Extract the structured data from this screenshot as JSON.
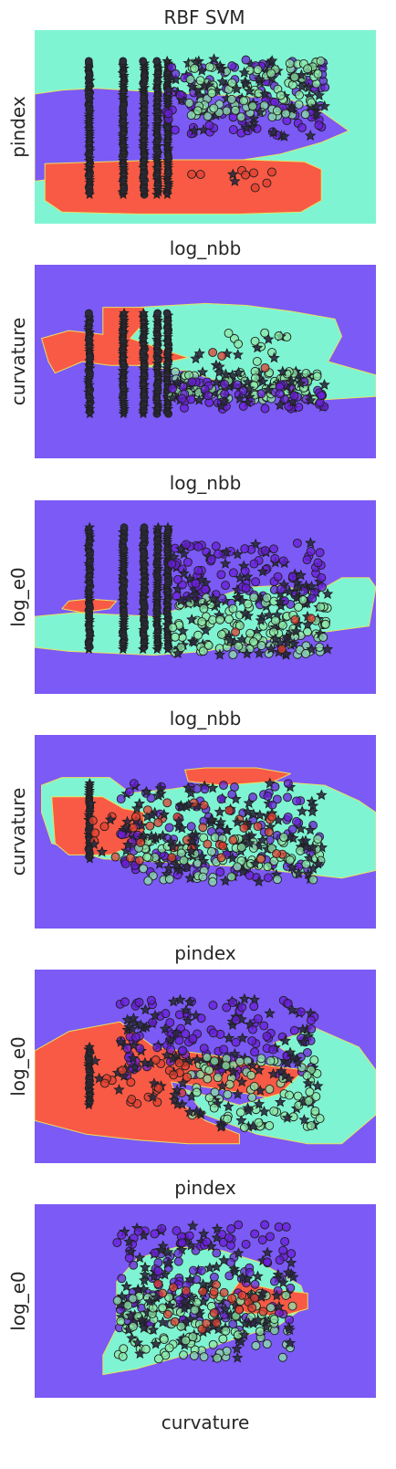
{
  "title": "RBF SVM",
  "colors": {
    "violet": "#7b5af5",
    "teal": "#7ff4d3",
    "red": "#f85a46",
    "class_purple": "#6a1fd8",
    "class_green": "#8ce8a8",
    "class_red": "#e04030",
    "edge": "#1e1e1e"
  },
  "chart_data": [
    {
      "type": "scatter",
      "xlabel": "log_nbb",
      "ylabel": "pindex",
      "grid": false,
      "xlim": [
        0,
        1
      ],
      "ylim": [
        0,
        1
      ],
      "background": "teal",
      "regions": [
        {
          "color": "violet",
          "points": [
            [
              0,
              0.67
            ],
            [
              0.08,
              0.69
            ],
            [
              0.18,
              0.7
            ],
            [
              0.35,
              0.68
            ],
            [
              0.6,
              0.66
            ],
            [
              0.75,
              0.64
            ],
            [
              0.84,
              0.58
            ],
            [
              0.92,
              0.48
            ],
            [
              0.84,
              0.42
            ],
            [
              0.72,
              0.36
            ],
            [
              0.5,
              0.3
            ],
            [
              0.3,
              0.28
            ],
            [
              0.1,
              0.24
            ],
            [
              0,
              0.22
            ]
          ]
        },
        {
          "color": "red",
          "points": [
            [
              0.03,
              0.31
            ],
            [
              0.2,
              0.32
            ],
            [
              0.4,
              0.33
            ],
            [
              0.62,
              0.33
            ],
            [
              0.79,
              0.32
            ],
            [
              0.84,
              0.28
            ],
            [
              0.84,
              0.12
            ],
            [
              0.78,
              0.06
            ],
            [
              0.6,
              0.05
            ],
            [
              0.3,
              0.05
            ],
            [
              0.08,
              0.06
            ],
            [
              0.03,
              0.12
            ]
          ]
        }
      ],
      "columns": [
        0.16,
        0.26,
        0.32,
        0.36,
        0.39
      ],
      "column_y": [
        0.15,
        0.84
      ],
      "clusters": [
        {
          "cls": "purple",
          "n": 140,
          "cx": [
            0.38,
            0.86
          ],
          "cy": [
            0.45,
            0.85
          ]
        },
        {
          "cls": "green",
          "n": 130,
          "cx": [
            0.45,
            0.84
          ],
          "cy": [
            0.55,
            0.85
          ]
        },
        {
          "cls": "red",
          "n": 10,
          "cx": [
            0.45,
            0.72
          ],
          "cy": [
            0.15,
            0.3
          ]
        }
      ]
    },
    {
      "type": "scatter",
      "xlabel": "log_nbb",
      "ylabel": "curvature",
      "grid": false,
      "xlim": [
        0,
        1
      ],
      "ylim": [
        0,
        1
      ],
      "background": "violet",
      "regions": [
        {
          "color": "teal",
          "points": [
            [
              0.2,
              0.77
            ],
            [
              0.3,
              0.78
            ],
            [
              0.4,
              0.79
            ],
            [
              0.5,
              0.8
            ],
            [
              0.62,
              0.79
            ],
            [
              0.75,
              0.76
            ],
            [
              0.88,
              0.72
            ],
            [
              0.9,
              0.63
            ],
            [
              0.86,
              0.5
            ],
            [
              1,
              0.43
            ],
            [
              1,
              0.32
            ],
            [
              0.82,
              0.3
            ],
            [
              0.6,
              0.36
            ],
            [
              0.45,
              0.45
            ],
            [
              0.3,
              0.48
            ],
            [
              0.22,
              0.55
            ]
          ]
        },
        {
          "color": "red",
          "points": [
            [
              0.02,
              0.62
            ],
            [
              0.1,
              0.66
            ],
            [
              0.2,
              0.64
            ],
            [
              0.2,
              0.78
            ],
            [
              0.32,
              0.78
            ],
            [
              0.32,
              0.7
            ],
            [
              0.28,
              0.62
            ],
            [
              0.38,
              0.56
            ],
            [
              0.45,
              0.52
            ],
            [
              0.34,
              0.48
            ],
            [
              0.22,
              0.48
            ],
            [
              0.14,
              0.5
            ],
            [
              0.06,
              0.44
            ],
            [
              0.04,
              0.5
            ]
          ]
        }
      ],
      "columns": [
        0.16,
        0.26,
        0.32,
        0.36,
        0.39
      ],
      "column_y": [
        0.23,
        0.75
      ],
      "clusters": [
        {
          "cls": "green",
          "n": 130,
          "cx": [
            0.4,
            0.85
          ],
          "cy": [
            0.3,
            0.45
          ]
        },
        {
          "cls": "purple",
          "n": 70,
          "cx": [
            0.4,
            0.85
          ],
          "cy": [
            0.25,
            0.4
          ]
        },
        {
          "cls": "green",
          "n": 15,
          "cx": [
            0.5,
            0.75
          ],
          "cy": [
            0.5,
            0.65
          ]
        },
        {
          "cls": "red",
          "n": 8,
          "cx": [
            0.45,
            0.7
          ],
          "cy": [
            0.45,
            0.55
          ]
        }
      ]
    },
    {
      "type": "scatter",
      "xlabel": "log_nbb",
      "ylabel": "log_e0",
      "grid": false,
      "xlim": [
        0,
        1
      ],
      "ylim": [
        0,
        1
      ],
      "background": "violet",
      "regions": [
        {
          "color": "teal",
          "points": [
            [
              0,
              0.4
            ],
            [
              0.12,
              0.42
            ],
            [
              0.35,
              0.4
            ],
            [
              0.5,
              0.48
            ],
            [
              0.62,
              0.55
            ],
            [
              0.72,
              0.56
            ],
            [
              0.82,
              0.52
            ],
            [
              0.9,
              0.6
            ],
            [
              0.98,
              0.6
            ],
            [
              1,
              0.55
            ],
            [
              0.98,
              0.35
            ],
            [
              0.85,
              0.32
            ],
            [
              0.68,
              0.28
            ],
            [
              0.5,
              0.22
            ],
            [
              0.35,
              0.2
            ],
            [
              0.1,
              0.22
            ],
            [
              0,
              0.24
            ]
          ]
        },
        {
          "color": "red",
          "points": [
            [
              0.08,
              0.44
            ],
            [
              0.1,
              0.48
            ],
            [
              0.16,
              0.49
            ],
            [
              0.24,
              0.48
            ],
            [
              0.22,
              0.44
            ],
            [
              0.14,
              0.42
            ]
          ]
        }
      ],
      "columns": [
        0.16,
        0.26,
        0.32,
        0.36,
        0.39
      ],
      "column_y": [
        0.23,
        0.86
      ],
      "clusters": [
        {
          "cls": "purple",
          "n": 140,
          "cx": [
            0.4,
            0.86
          ],
          "cy": [
            0.45,
            0.78
          ]
        },
        {
          "cls": "green",
          "n": 170,
          "cx": [
            0.4,
            0.86
          ],
          "cy": [
            0.2,
            0.5
          ]
        },
        {
          "cls": "red",
          "n": 6,
          "cx": [
            0.55,
            0.85
          ],
          "cy": [
            0.2,
            0.4
          ]
        }
      ]
    },
    {
      "type": "scatter",
      "xlabel": "pindex",
      "ylabel": "curvature",
      "grid": false,
      "xlim": [
        0,
        1
      ],
      "ylim": [
        0,
        1
      ],
      "background": "violet",
      "regions": [
        {
          "color": "teal",
          "points": [
            [
              0.02,
              0.74
            ],
            [
              0.08,
              0.78
            ],
            [
              0.22,
              0.78
            ],
            [
              0.28,
              0.7
            ],
            [
              0.4,
              0.72
            ],
            [
              0.55,
              0.76
            ],
            [
              0.7,
              0.76
            ],
            [
              0.85,
              0.74
            ],
            [
              0.95,
              0.66
            ],
            [
              1,
              0.6
            ],
            [
              1,
              0.3
            ],
            [
              0.9,
              0.26
            ],
            [
              0.8,
              0.28
            ],
            [
              0.6,
              0.32
            ],
            [
              0.4,
              0.34
            ],
            [
              0.2,
              0.36
            ],
            [
              0.05,
              0.44
            ],
            [
              0.02,
              0.6
            ]
          ]
        },
        {
          "color": "red",
          "points": [
            [
              0.05,
              0.68
            ],
            [
              0.2,
              0.68
            ],
            [
              0.26,
              0.62
            ],
            [
              0.32,
              0.6
            ],
            [
              0.32,
              0.45
            ],
            [
              0.22,
              0.38
            ],
            [
              0.1,
              0.38
            ],
            [
              0.06,
              0.44
            ]
          ]
        },
        {
          "color": "red",
          "points": [
            [
              0.44,
              0.82
            ],
            [
              0.5,
              0.83
            ],
            [
              0.65,
              0.83
            ],
            [
              0.75,
              0.8
            ],
            [
              0.7,
              0.76
            ],
            [
              0.55,
              0.74
            ],
            [
              0.45,
              0.76
            ]
          ]
        }
      ],
      "columns": [
        0.16
      ],
      "column_y": [
        0.36,
        0.75
      ],
      "clusters": [
        {
          "cls": "purple",
          "n": 190,
          "cx": [
            0.25,
            0.85
          ],
          "cy": [
            0.26,
            0.75
          ]
        },
        {
          "cls": "green",
          "n": 110,
          "cx": [
            0.3,
            0.85
          ],
          "cy": [
            0.24,
            0.48
          ]
        },
        {
          "cls": "red",
          "n": 70,
          "cx": [
            0.15,
            0.75
          ],
          "cy": [
            0.35,
            0.65
          ]
        }
      ]
    },
    {
      "type": "scatter",
      "xlabel": "pindex",
      "ylabel": "log_e0",
      "grid": false,
      "xlim": [
        0,
        1
      ],
      "ylim": [
        0,
        1
      ],
      "background": "violet",
      "regions": [
        {
          "color": "red",
          "points": [
            [
              0,
              0.58
            ],
            [
              0.1,
              0.68
            ],
            [
              0.25,
              0.73
            ],
            [
              0.35,
              0.6
            ],
            [
              0.55,
              0.55
            ],
            [
              0.7,
              0.5
            ],
            [
              0.8,
              0.48
            ],
            [
              0.85,
              0.42
            ],
            [
              0.75,
              0.32
            ],
            [
              0.55,
              0.38
            ],
            [
              0.4,
              0.42
            ],
            [
              0.42,
              0.32
            ],
            [
              0.5,
              0.22
            ],
            [
              0.6,
              0.15
            ],
            [
              0.6,
              0.1
            ],
            [
              0.45,
              0.1
            ],
            [
              0.3,
              0.12
            ],
            [
              0.15,
              0.15
            ],
            [
              0,
              0.22
            ]
          ]
        },
        {
          "color": "teal",
          "points": [
            [
              0.44,
              0.38
            ],
            [
              0.6,
              0.3
            ],
            [
              0.72,
              0.36
            ],
            [
              0.8,
              0.5
            ],
            [
              0.7,
              0.62
            ],
            [
              0.82,
              0.7
            ],
            [
              0.95,
              0.6
            ],
            [
              1,
              0.48
            ],
            [
              1,
              0.25
            ],
            [
              0.9,
              0.1
            ],
            [
              0.8,
              0.1
            ],
            [
              0.65,
              0.15
            ],
            [
              0.5,
              0.25
            ]
          ]
        }
      ],
      "columns": [
        0.16
      ],
      "column_y": [
        0.3,
        0.6
      ],
      "clusters": [
        {
          "cls": "purple",
          "n": 180,
          "cx": [
            0.25,
            0.82
          ],
          "cy": [
            0.45,
            0.85
          ]
        },
        {
          "cls": "green",
          "n": 120,
          "cx": [
            0.45,
            0.84
          ],
          "cy": [
            0.18,
            0.55
          ]
        },
        {
          "cls": "red",
          "n": 40,
          "cx": [
            0.17,
            0.45
          ],
          "cy": [
            0.3,
            0.55
          ]
        }
      ]
    },
    {
      "type": "scatter",
      "xlabel": "curvature",
      "ylabel": "log_e0",
      "grid": false,
      "xlim": [
        0,
        1
      ],
      "ylim": [
        0,
        1
      ],
      "background": "violet",
      "regions": [
        {
          "color": "teal",
          "points": [
            [
              0.24,
              0.6
            ],
            [
              0.3,
              0.72
            ],
            [
              0.42,
              0.78
            ],
            [
              0.55,
              0.76
            ],
            [
              0.66,
              0.7
            ],
            [
              0.78,
              0.58
            ],
            [
              0.8,
              0.48
            ],
            [
              0.72,
              0.38
            ],
            [
              0.58,
              0.3
            ],
            [
              0.44,
              0.22
            ],
            [
              0.3,
              0.15
            ],
            [
              0.2,
              0.12
            ],
            [
              0.2,
              0.22
            ],
            [
              0.24,
              0.36
            ]
          ]
        },
        {
          "color": "red",
          "points": [
            [
              0.6,
              0.6
            ],
            [
              0.7,
              0.56
            ],
            [
              0.8,
              0.54
            ],
            [
              0.8,
              0.46
            ],
            [
              0.72,
              0.42
            ],
            [
              0.62,
              0.44
            ],
            [
              0.56,
              0.5
            ]
          ]
        }
      ],
      "columns": [],
      "column_y": [
        0,
        0
      ],
      "clusters": [
        {
          "cls": "purple",
          "n": 220,
          "cx": [
            0.24,
            0.76
          ],
          "cy": [
            0.35,
            0.9
          ]
        },
        {
          "cls": "green",
          "n": 150,
          "cx": [
            0.24,
            0.76
          ],
          "cy": [
            0.2,
            0.55
          ]
        },
        {
          "cls": "red",
          "n": 30,
          "cx": [
            0.35,
            0.75
          ],
          "cy": [
            0.35,
            0.6
          ]
        }
      ]
    }
  ]
}
